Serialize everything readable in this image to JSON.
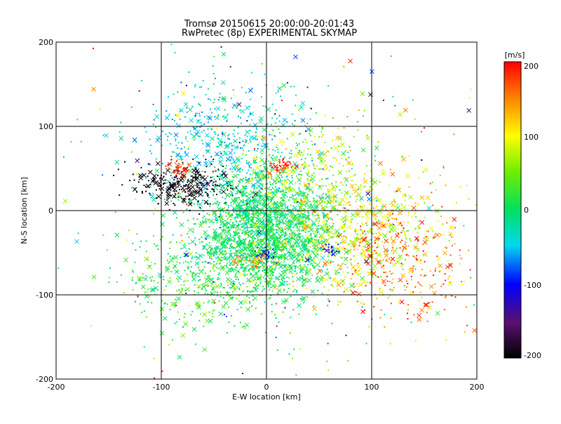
{
  "chart_data": {
    "type": "scatter",
    "title": "Tromsø 20150615 20:00:00-20:01:43",
    "subtitle": "RwPretec (8p) EXPERIMENTAL SKYMAP",
    "xlabel": "E-W location [km]",
    "ylabel": "N-S location [km]",
    "xlim": [
      -200,
      200
    ],
    "ylim": [
      -200,
      200
    ],
    "xticks": [
      "-200",
      "-100",
      "0",
      "100",
      "200"
    ],
    "yticks": [
      "-200",
      "-100",
      "0",
      "100",
      "200"
    ],
    "grid": true,
    "colorbar": {
      "label": "[m/s]",
      "min": -200,
      "max": 200,
      "ticks": [
        "200",
        "100",
        "0",
        "-100",
        "-200"
      ],
      "colormap": "rainbow (black-purple-blue-cyan-green-yellow-red)"
    },
    "markers": [
      "dot",
      "x"
    ],
    "clusters": [
      {
        "region": "central dense cluster",
        "x": 0,
        "y": -20,
        "spread": [
          30,
          35
        ],
        "count": 2000,
        "v_mean": 0,
        "v_sd": 20
      },
      {
        "region": "north-west plume",
        "x": -40,
        "y": 80,
        "spread": [
          40,
          40
        ],
        "count": 500,
        "v_mean": -40,
        "v_sd": 20
      },
      {
        "region": "west dark arc",
        "x": -80,
        "y": 30,
        "spread": [
          25,
          12
        ],
        "count": 260,
        "v_mean": -200,
        "v_sd": 15
      },
      {
        "region": "north-west red patch",
        "x": -85,
        "y": 50,
        "spread": [
          8,
          5
        ],
        "count": 40,
        "v_mean": 180,
        "v_sd": 15
      },
      {
        "region": "east yellow region",
        "x": 80,
        "y": -20,
        "spread": [
          40,
          35
        ],
        "count": 650,
        "v_mean": 90,
        "v_sd": 35
      },
      {
        "region": "south-east red region",
        "x": 130,
        "y": -60,
        "spread": [
          35,
          40
        ],
        "count": 280,
        "v_mean": 160,
        "v_sd": 30
      },
      {
        "region": "south green region",
        "x": -50,
        "y": -80,
        "spread": [
          40,
          30
        ],
        "count": 450,
        "v_mean": 20,
        "v_sd": 25
      },
      {
        "region": "north-east yellow cluster",
        "x": 45,
        "y": 60,
        "spread": [
          30,
          25
        ],
        "count": 180,
        "v_mean": 70,
        "v_sd": 30
      },
      {
        "region": "central-north red patch",
        "x": 15,
        "y": 55,
        "spread": [
          6,
          6
        ],
        "count": 30,
        "v_mean": 190,
        "v_sd": 10
      },
      {
        "region": "central-south orange patch",
        "x": -10,
        "y": -60,
        "spread": [
          10,
          5
        ],
        "count": 40,
        "v_mean": 150,
        "v_sd": 20
      },
      {
        "region": "central blue patch",
        "x": 0,
        "y": -52,
        "spread": [
          6,
          4
        ],
        "count": 25,
        "v_mean": -110,
        "v_sd": 10
      },
      {
        "region": "east blue patch",
        "x": 60,
        "y": -46,
        "spread": [
          6,
          4
        ],
        "count": 20,
        "v_mean": -110,
        "v_sd": 10
      },
      {
        "region": "scattered background",
        "x": 0,
        "y": 0,
        "spread": [
          110,
          110
        ],
        "count": 350,
        "v_mean": 20,
        "v_sd": 90
      }
    ]
  }
}
